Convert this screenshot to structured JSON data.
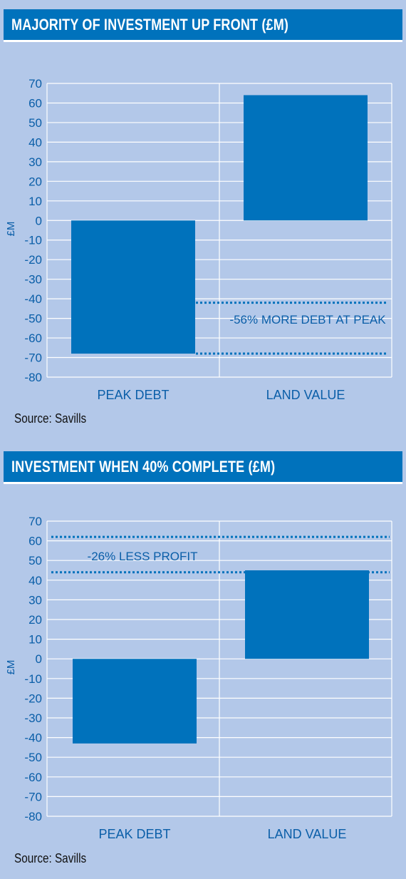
{
  "colors": {
    "background": "#b3c8e9",
    "header": "#0072bc",
    "bar": "#0072bc",
    "axis_text": "#0a5ea8",
    "grid": "#ffffff"
  },
  "chart_data": [
    {
      "type": "bar",
      "title": "MAJORITY OF INVESTMENT UP FRONT (£M)",
      "ylabel": "£M",
      "xlabel": "",
      "categories": [
        "PEAK DEBT",
        "LAND VALUE"
      ],
      "values": [
        -68,
        64
      ],
      "ylim": [
        -80,
        70
      ],
      "yticks": [
        70,
        60,
        50,
        40,
        30,
        20,
        10,
        0,
        -10,
        -20,
        -30,
        -40,
        -50,
        -60,
        -70,
        -80
      ],
      "grid": true,
      "annotations": [
        {
          "text": "-56% MORE DEBT AT PEAK",
          "dotted_lines_at": [
            -42,
            -68
          ]
        }
      ],
      "source": "Source: Savills"
    },
    {
      "type": "bar",
      "title": "INVESTMENT WHEN 40% COMPLETE (£M)",
      "ylabel": "£M",
      "xlabel": "",
      "categories": [
        "PEAK DEBT",
        "LAND VALUE"
      ],
      "values": [
        -43,
        45
      ],
      "ylim": [
        -80,
        70
      ],
      "yticks": [
        70,
        60,
        50,
        40,
        30,
        20,
        10,
        0,
        -10,
        -20,
        -30,
        -40,
        -50,
        -60,
        -70,
        -80
      ],
      "grid": true,
      "annotations": [
        {
          "text": "-26% LESS PROFIT",
          "dotted_lines_at": [
            62,
            44
          ]
        }
      ],
      "source": "Source: Savills"
    }
  ]
}
